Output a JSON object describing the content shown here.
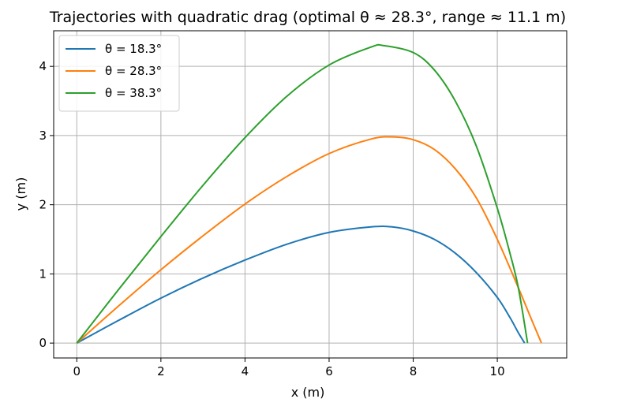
{
  "chart_data": {
    "type": "line",
    "title": "Trajectories with quadratic drag (optimal θ ≈ 28.3°, range ≈ 11.1 m)",
    "xlabel": "x (m)",
    "ylabel": "y (m)",
    "xlim": [
      -0.55,
      11.65
    ],
    "ylim": [
      -0.215,
      4.515
    ],
    "xticks": [
      0,
      2,
      4,
      6,
      8,
      10
    ],
    "yticks": [
      0,
      1,
      2,
      3,
      4
    ],
    "grid": true,
    "legend_position": "top-left",
    "series": [
      {
        "name": "θ = 18.3°",
        "color": "#1f77b4",
        "x": [
          0,
          1,
          2,
          3,
          4,
          5,
          6,
          7,
          7.5,
          8,
          8.5,
          9,
          9.5,
          10,
          10.3,
          10.5,
          10.65
        ],
        "y": [
          0,
          0.33,
          0.65,
          0.94,
          1.2,
          1.43,
          1.6,
          1.68,
          1.68,
          1.62,
          1.5,
          1.3,
          1.02,
          0.66,
          0.37,
          0.15,
          0
        ]
      },
      {
        "name": "θ = 28.3°",
        "color": "#ff7f0e",
        "x": [
          0,
          1,
          2,
          3,
          4,
          5,
          6,
          7,
          7.5,
          8,
          8.5,
          9,
          9.5,
          10,
          10.5,
          10.8,
          11.05
        ],
        "y": [
          0,
          0.54,
          1.06,
          1.55,
          2.01,
          2.41,
          2.74,
          2.95,
          2.98,
          2.94,
          2.8,
          2.52,
          2.1,
          1.5,
          0.8,
          0.36,
          0
        ]
      },
      {
        "name": "θ = 38.3°",
        "color": "#2ca02c",
        "x": [
          0,
          1,
          2,
          3,
          4,
          5,
          6,
          7,
          7.3,
          8,
          8.5,
          9,
          9.5,
          10,
          10.3,
          10.5,
          10.72
        ],
        "y": [
          0,
          0.78,
          1.54,
          2.28,
          2.97,
          3.57,
          4.02,
          4.28,
          4.3,
          4.2,
          3.95,
          3.5,
          2.85,
          1.95,
          1.3,
          0.8,
          0
        ]
      }
    ]
  }
}
